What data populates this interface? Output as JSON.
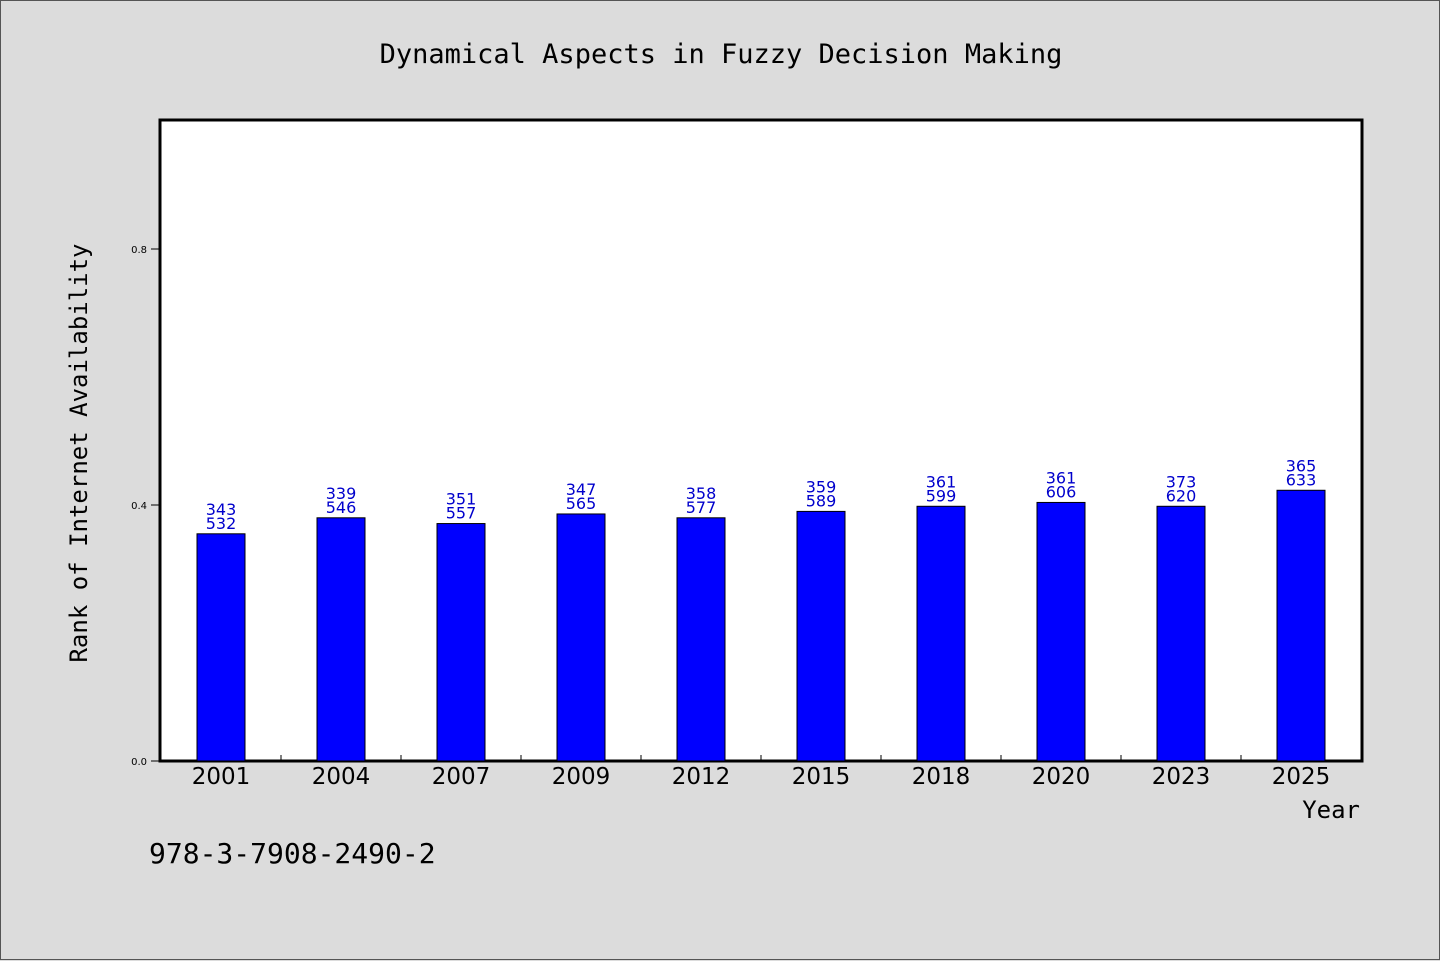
{
  "chart_data": {
    "type": "bar",
    "title": "Dynamical Aspects in Fuzzy Decision Making",
    "xlabel": "Year",
    "ylabel": "Rank of Internet Availability",
    "ylim": [
      0.0,
      1.0
    ],
    "yticks": [
      "0.0",
      "0.4",
      "0.8"
    ],
    "ytick_values": [
      0.0,
      0.4,
      0.8
    ],
    "categories": [
      "2001",
      "2004",
      "2007",
      "2009",
      "2012",
      "2015",
      "2018",
      "2020",
      "2023",
      "2025"
    ],
    "values": [
      0.355,
      0.38,
      0.371,
      0.386,
      0.38,
      0.39,
      0.398,
      0.404,
      0.398,
      0.423
    ],
    "label_top": [
      "343",
      "339",
      "351",
      "347",
      "358",
      "359",
      "361",
      "361",
      "373",
      "365"
    ],
    "label_bottom": [
      "532",
      "546",
      "557",
      "565",
      "577",
      "589",
      "599",
      "606",
      "620",
      "633"
    ],
    "grid": false,
    "legend": "none",
    "colors": {
      "bar": "#0000ff",
      "label": "#0000cc",
      "plot_bg": "#ffffff",
      "page_bg": "#dcdcdc"
    }
  },
  "footer": {
    "isbn": "978-3-7908-2490-2"
  }
}
